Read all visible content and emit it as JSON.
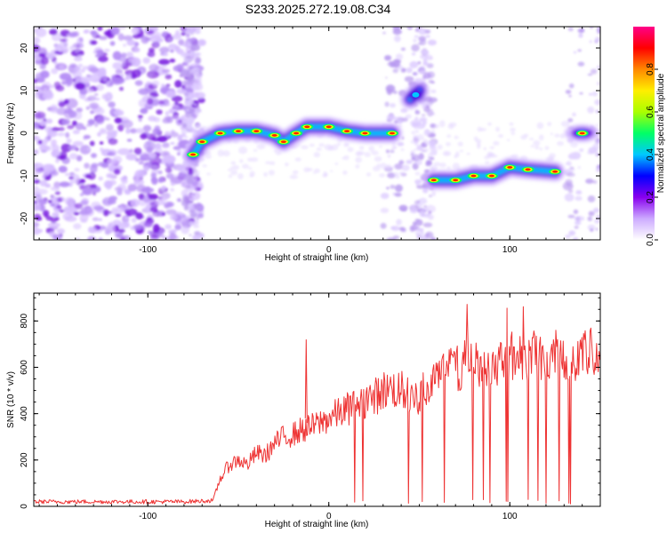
{
  "title": "S233.2025.272.19.08.C34",
  "chart_data": [
    {
      "type": "heatmap",
      "xlabel": "Height of straight line (km)",
      "ylabel": "Frequency (Hz)",
      "xlim": [
        -163,
        150
      ],
      "ylim": [
        -25,
        25
      ],
      "x_ticks": [
        -100,
        0,
        100
      ],
      "y_ticks": [
        20,
        10,
        0,
        -10,
        -20
      ],
      "colorbar": {
        "label": "Normalized spectral amplitude",
        "range": [
          0,
          1
        ],
        "ticks": [
          "0.0",
          "0.2",
          "0.4",
          "0.6",
          "0.8"
        ],
        "colors": [
          "#ffffff",
          "#ccaaff",
          "#8800ee",
          "#0000ff",
          "#00c8ff",
          "#00ff66",
          "#aaff00",
          "#ffee00",
          "#ff8800",
          "#ff0000",
          "#ff0088"
        ]
      },
      "ridge": [
        {
          "x": -75,
          "y": -5
        },
        {
          "x": -70,
          "y": -2
        },
        {
          "x": -60,
          "y": 0
        },
        {
          "x": -50,
          "y": 0.5
        },
        {
          "x": -40,
          "y": 0.5
        },
        {
          "x": -30,
          "y": -0.5
        },
        {
          "x": -25,
          "y": -2
        },
        {
          "x": -18,
          "y": 0
        },
        {
          "x": -12,
          "y": 1.5
        },
        {
          "x": 0,
          "y": 1.5
        },
        {
          "x": 10,
          "y": 0.5
        },
        {
          "x": 20,
          "y": 0
        },
        {
          "x": 35,
          "y": 0
        },
        {
          "x": 45,
          "y": 8
        },
        {
          "x": 50,
          "y": 10
        },
        {
          "x": 58,
          "y": -11
        },
        {
          "x": 70,
          "y": -11
        },
        {
          "x": 80,
          "y": -10
        },
        {
          "x": 90,
          "y": -10
        },
        {
          "x": 100,
          "y": -8
        },
        {
          "x": 110,
          "y": -8.5
        },
        {
          "x": 125,
          "y": -9
        },
        {
          "x": 140,
          "y": 0
        }
      ]
    },
    {
      "type": "line",
      "xlabel": "Height of straight line (km)",
      "ylabel": "SNR (10 * v/v)",
      "xlim": [
        -163,
        150
      ],
      "ylim": [
        0,
        920
      ],
      "x_ticks": [
        -100,
        0,
        100
      ],
      "y_ticks": [
        0,
        200,
        400,
        600,
        800
      ],
      "series": [
        {
          "color": "#ee3333",
          "points": [
            {
              "x": -163,
              "y": 20
            },
            {
              "x": -140,
              "y": 20
            },
            {
              "x": -120,
              "y": 20
            },
            {
              "x": -100,
              "y": 20
            },
            {
              "x": -80,
              "y": 20
            },
            {
              "x": -64,
              "y": 25
            },
            {
              "x": -60,
              "y": 120
            },
            {
              "x": -55,
              "y": 180
            },
            {
              "x": -50,
              "y": 200
            },
            {
              "x": -45,
              "y": 180
            },
            {
              "x": -40,
              "y": 230
            },
            {
              "x": -35,
              "y": 220
            },
            {
              "x": -30,
              "y": 270
            },
            {
              "x": -25,
              "y": 300
            },
            {
              "x": -20,
              "y": 310
            },
            {
              "x": -15,
              "y": 330
            },
            {
              "x": -10,
              "y": 340
            },
            {
              "x": -5,
              "y": 360
            },
            {
              "x": 0,
              "y": 380
            },
            {
              "x": 5,
              "y": 400
            },
            {
              "x": 10,
              "y": 420
            },
            {
              "x": 15,
              "y": 440
            },
            {
              "x": 20,
              "y": 460
            },
            {
              "x": 25,
              "y": 470
            },
            {
              "x": 30,
              "y": 500
            },
            {
              "x": 35,
              "y": 510
            },
            {
              "x": 40,
              "y": 500
            },
            {
              "x": 45,
              "y": 470
            },
            {
              "x": 50,
              "y": 480
            },
            {
              "x": 55,
              "y": 530
            },
            {
              "x": 60,
              "y": 620
            },
            {
              "x": 65,
              "y": 600
            },
            {
              "x": 70,
              "y": 590
            },
            {
              "x": 75,
              "y": 620
            },
            {
              "x": 80,
              "y": 620
            },
            {
              "x": 85,
              "y": 620
            },
            {
              "x": 90,
              "y": 610
            },
            {
              "x": 95,
              "y": 640
            },
            {
              "x": 100,
              "y": 650
            },
            {
              "x": 105,
              "y": 640
            },
            {
              "x": 110,
              "y": 660
            },
            {
              "x": 115,
              "y": 650
            },
            {
              "x": 120,
              "y": 640
            },
            {
              "x": 125,
              "y": 650
            },
            {
              "x": 130,
              "y": 660
            },
            {
              "x": 135,
              "y": 640
            },
            {
              "x": 140,
              "y": 650
            },
            {
              "x": 145,
              "y": 660
            },
            {
              "x": 150,
              "y": 660
            }
          ]
        }
      ]
    }
  ]
}
